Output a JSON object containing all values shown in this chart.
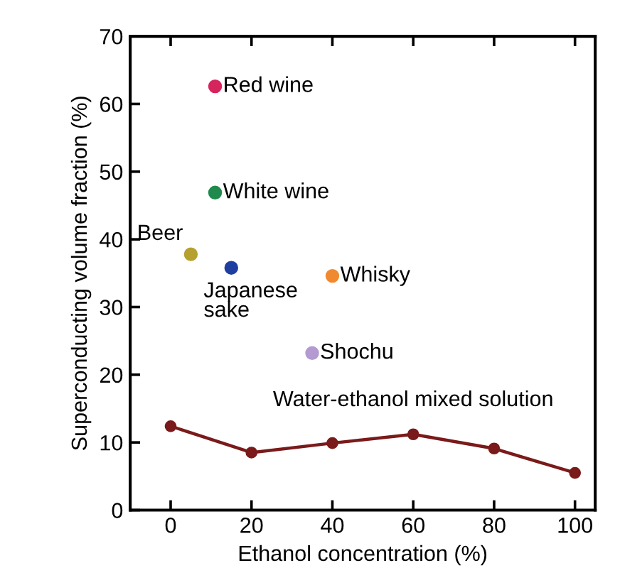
{
  "chart_data": {
    "type": "scatter",
    "xlabel": "Ethanol concentration (%)",
    "ylabel": "Superconducting volume fraction (%)",
    "xlim": [
      -10,
      105
    ],
    "xticks": [
      0,
      20,
      40,
      60,
      80,
      100
    ],
    "ylim": [
      0,
      70
    ],
    "yticks": [
      0,
      10,
      20,
      30,
      40,
      50,
      60,
      70
    ],
    "grid": false,
    "legend": false,
    "series": [
      {
        "name": "Red wine",
        "color": "#d6245e",
        "x": [
          11
        ],
        "values": [
          62.6
        ]
      },
      {
        "name": "White wine",
        "color": "#1f8a4c",
        "x": [
          11
        ],
        "values": [
          46.9
        ]
      },
      {
        "name": "Beer",
        "color": "#b5a030",
        "x": [
          5
        ],
        "values": [
          37.8
        ]
      },
      {
        "name": "Japanese\nsake",
        "color": "#1f3fa0",
        "x": [
          15
        ],
        "values": [
          35.8
        ]
      },
      {
        "name": "Whisky",
        "color": "#f08a30",
        "x": [
          40
        ],
        "values": [
          34.6
        ]
      },
      {
        "name": "Shochu",
        "color": "#b39ad0",
        "x": [
          35
        ],
        "values": [
          23.2
        ]
      },
      {
        "name": "Water-ethanol mixed solution",
        "type": "line",
        "color": "#7a1a1a",
        "marker": "circle",
        "line_style": "solid",
        "x": [
          0,
          20,
          40,
          60,
          80,
          100
        ],
        "values": [
          12.4,
          8.5,
          9.9,
          11.2,
          9.1,
          5.5
        ]
      }
    ]
  }
}
